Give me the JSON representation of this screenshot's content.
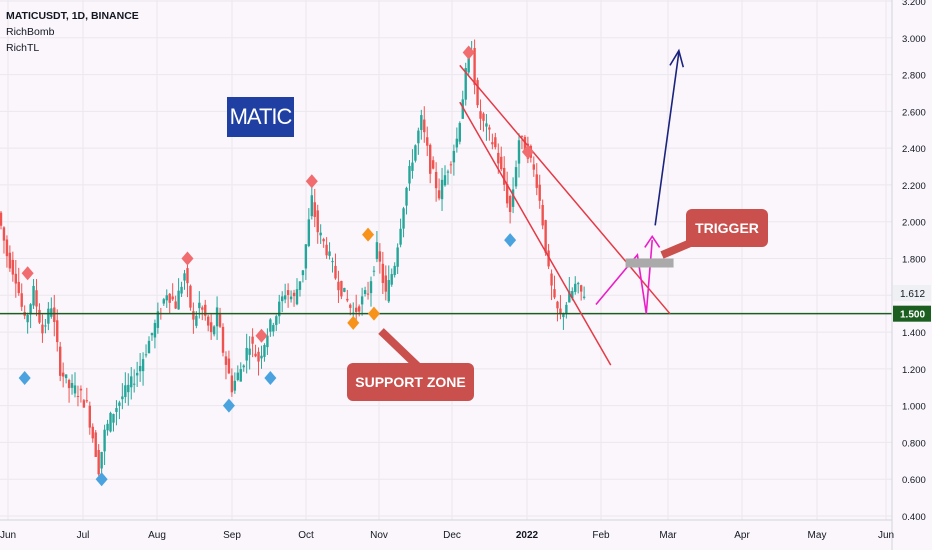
{
  "legend": {
    "symbol": "MATICUSDT, 1D, BINANCE",
    "indicators": [
      "RichBomb",
      "RichTL"
    ]
  },
  "annotations": {
    "matic_label": "MATIC",
    "support_label": "SUPPORT ZONE",
    "trigger_label": "TRIGGER"
  },
  "colors": {
    "background": "#faf6fb",
    "up_candle": "#26a69a",
    "down_candle": "#ef5350",
    "support_line": "#1b5e20",
    "channel": "#e53946",
    "projection_up": "#1a237e",
    "projection_path": "#e91ec8",
    "signal_sell": "#f06c6f",
    "signal_buy": "#4aa3df",
    "signal_orange": "#f7931a",
    "trigger_zone": "#aaaaaa",
    "callout_red": "#c9504d",
    "matic_blue": "#1f3fa2"
  },
  "chart_data": {
    "type": "candlestick",
    "title": "MATICUSDT, 1D, BINANCE",
    "x_ticks": [
      "Jun",
      "Jul",
      "Aug",
      "Sep",
      "Oct",
      "Nov",
      "Dec",
      "2022",
      "Feb",
      "Mar",
      "Apr",
      "May",
      "Jun"
    ],
    "y_ticks": [
      "3.200",
      "3.000",
      "2.800",
      "2.600",
      "2.400",
      "2.200",
      "2.000",
      "1.800",
      "1.600",
      "1.400",
      "1.200",
      "1.000",
      "0.800",
      "0.600",
      "0.400"
    ],
    "ylim": [
      0.4,
      3.2
    ],
    "last_price": "1.612",
    "support_level": "1.500",
    "price_path": [
      [
        0,
        2.05
      ],
      [
        3,
        1.82
      ],
      [
        6,
        1.7
      ],
      [
        9,
        1.45
      ],
      [
        12,
        1.62
      ],
      [
        15,
        1.4
      ],
      [
        18,
        1.55
      ],
      [
        21,
        1.2
      ],
      [
        24,
        1.1
      ],
      [
        27,
        1.08
      ],
      [
        30,
        1.0
      ],
      [
        33,
        0.75
      ],
      [
        34,
        0.66
      ],
      [
        36,
        0.85
      ],
      [
        39,
        0.97
      ],
      [
        42,
        1.05
      ],
      [
        45,
        1.12
      ],
      [
        48,
        1.22
      ],
      [
        51,
        1.35
      ],
      [
        54,
        1.48
      ],
      [
        57,
        1.62
      ],
      [
        60,
        1.55
      ],
      [
        63,
        1.72
      ],
      [
        66,
        1.45
      ],
      [
        68,
        1.55
      ],
      [
        70,
        1.48
      ],
      [
        72,
        1.38
      ],
      [
        74,
        1.5
      ],
      [
        76,
        1.3
      ],
      [
        79,
        1.1
      ],
      [
        82,
        1.2
      ],
      [
        85,
        1.35
      ],
      [
        88,
        1.25
      ],
      [
        91,
        1.4
      ],
      [
        94,
        1.5
      ],
      [
        97,
        1.62
      ],
      [
        100,
        1.58
      ],
      [
        103,
        1.75
      ],
      [
        106,
        2.12
      ],
      [
        108,
        1.95
      ],
      [
        111,
        1.85
      ],
      [
        114,
        1.7
      ],
      [
        117,
        1.6
      ],
      [
        120,
        1.5
      ],
      [
        122,
        1.55
      ],
      [
        125,
        1.62
      ],
      [
        128,
        1.85
      ],
      [
        131,
        1.6
      ],
      [
        134,
        1.78
      ],
      [
        137,
        2.1
      ],
      [
        140,
        2.35
      ],
      [
        143,
        2.55
      ],
      [
        146,
        2.3
      ],
      [
        149,
        2.15
      ],
      [
        152,
        2.3
      ],
      [
        155,
        2.45
      ],
      [
        158,
        2.8
      ],
      [
        160,
        2.95
      ],
      [
        162,
        2.6
      ],
      [
        165,
        2.5
      ],
      [
        168,
        2.4
      ],
      [
        171,
        2.2
      ],
      [
        173,
        2.05
      ],
      [
        176,
        2.45
      ],
      [
        179,
        2.38
      ],
      [
        182,
        2.22
      ],
      [
        184,
        2.0
      ],
      [
        186,
        1.72
      ],
      [
        188,
        1.55
      ],
      [
        190,
        1.48
      ],
      [
        192,
        1.56
      ],
      [
        195,
        1.65
      ],
      [
        197,
        1.612
      ]
    ],
    "signals": [
      {
        "type": "sell",
        "date_index": 9,
        "price": 1.72
      },
      {
        "type": "buy",
        "date_index": 8,
        "price": 1.15
      },
      {
        "type": "buy",
        "date_index": 34,
        "price": 0.6
      },
      {
        "type": "sell",
        "date_index": 63,
        "price": 1.8
      },
      {
        "type": "buy",
        "date_index": 77,
        "price": 1.0
      },
      {
        "type": "sell",
        "date_index": 88,
        "price": 1.38
      },
      {
        "type": "buy",
        "date_index": 91,
        "price": 1.15
      },
      {
        "type": "sell",
        "date_index": 105,
        "price": 2.22
      },
      {
        "type": "orange",
        "date_index": 119,
        "price": 1.45
      },
      {
        "type": "orange",
        "date_index": 124,
        "price": 1.93
      },
      {
        "type": "orange",
        "date_index": 126,
        "price": 1.5
      },
      {
        "type": "sell",
        "date_index": 158,
        "price": 2.92
      },
      {
        "type": "buy",
        "date_index": 172,
        "price": 1.9
      },
      {
        "type": "sell",
        "date_index": 178,
        "price": 2.38
      }
    ]
  }
}
